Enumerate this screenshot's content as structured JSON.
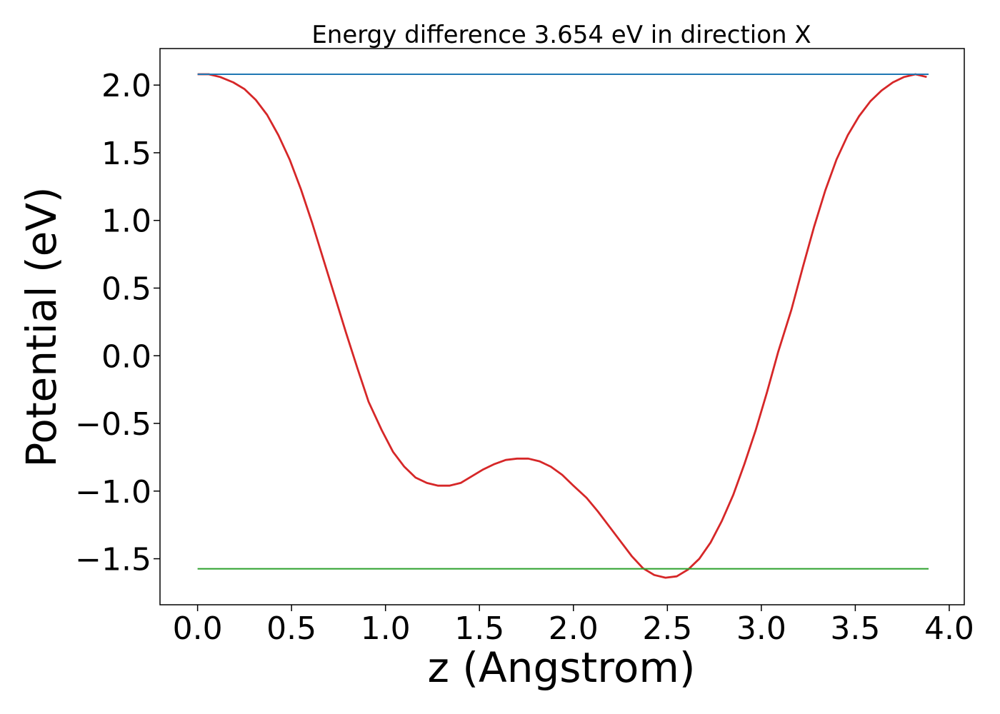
{
  "chart_data": {
    "type": "line",
    "title": "Energy difference 3.654 eV in direction X",
    "xlabel": "z (Angstrom)",
    "ylabel": "Potential (eV)",
    "xlim": [
      -0.2,
      4.08
    ],
    "ylim": [
      -1.84,
      2.27
    ],
    "xticks": [
      0.0,
      0.5,
      1.0,
      1.5,
      2.0,
      2.5,
      3.0,
      3.5,
      4.0
    ],
    "xtick_labels": [
      "0.0",
      "0.5",
      "1.0",
      "1.5",
      "2.0",
      "2.5",
      "3.0",
      "3.5",
      "4.0"
    ],
    "yticks": [
      2.0,
      1.5,
      1.0,
      0.5,
      0.0,
      -0.5,
      -1.0,
      -1.5
    ],
    "ytick_labels": [
      "2.0",
      "1.5",
      "1.0",
      "0.5",
      "0.0",
      "−0.5",
      "−1.0",
      "−1.5"
    ],
    "grid": false,
    "series": [
      {
        "color": "#d62728",
        "x": [
          0.0,
          0.06,
          0.12,
          0.19,
          0.25,
          0.31,
          0.37,
          0.43,
          0.49,
          0.55,
          0.61,
          0.67,
          0.73,
          0.79,
          0.85,
          0.91,
          0.98,
          1.04,
          1.1,
          1.16,
          1.22,
          1.28,
          1.34,
          1.4,
          1.46,
          1.52,
          1.58,
          1.64,
          1.7,
          1.76,
          1.82,
          1.88,
          1.94,
          2.0,
          2.07,
          2.13,
          2.19,
          2.25,
          2.31,
          2.37,
          2.43,
          2.49,
          2.55,
          2.61,
          2.67,
          2.73,
          2.79,
          2.85,
          2.91,
          2.97,
          3.03,
          3.09,
          3.16,
          3.22,
          3.28,
          3.34,
          3.4,
          3.46,
          3.52,
          3.58,
          3.64,
          3.7,
          3.76,
          3.82,
          3.88
        ],
        "y": [
          2.08,
          2.08,
          2.06,
          2.02,
          1.97,
          1.89,
          1.78,
          1.63,
          1.45,
          1.23,
          0.98,
          0.71,
          0.44,
          0.17,
          -0.09,
          -0.34,
          -0.55,
          -0.71,
          -0.82,
          -0.9,
          -0.94,
          -0.96,
          -0.96,
          -0.94,
          -0.89,
          -0.84,
          -0.8,
          -0.77,
          -0.76,
          -0.76,
          -0.78,
          -0.82,
          -0.88,
          -0.96,
          -1.05,
          -1.15,
          -1.26,
          -1.37,
          -1.48,
          -1.57,
          -1.62,
          -1.64,
          -1.63,
          -1.58,
          -1.5,
          -1.38,
          -1.22,
          -1.03,
          -0.8,
          -0.55,
          -0.27,
          0.03,
          0.34,
          0.65,
          0.95,
          1.22,
          1.45,
          1.63,
          1.77,
          1.88,
          1.96,
          2.02,
          2.06,
          2.08,
          2.06
        ]
      },
      {
        "color": "#1f77b4",
        "x": [
          0.0,
          3.89
        ],
        "y": [
          2.08,
          2.08
        ]
      },
      {
        "color": "#2ca02c",
        "x": [
          0.0,
          3.89
        ],
        "y": [
          -1.574,
          -1.574
        ]
      }
    ]
  }
}
